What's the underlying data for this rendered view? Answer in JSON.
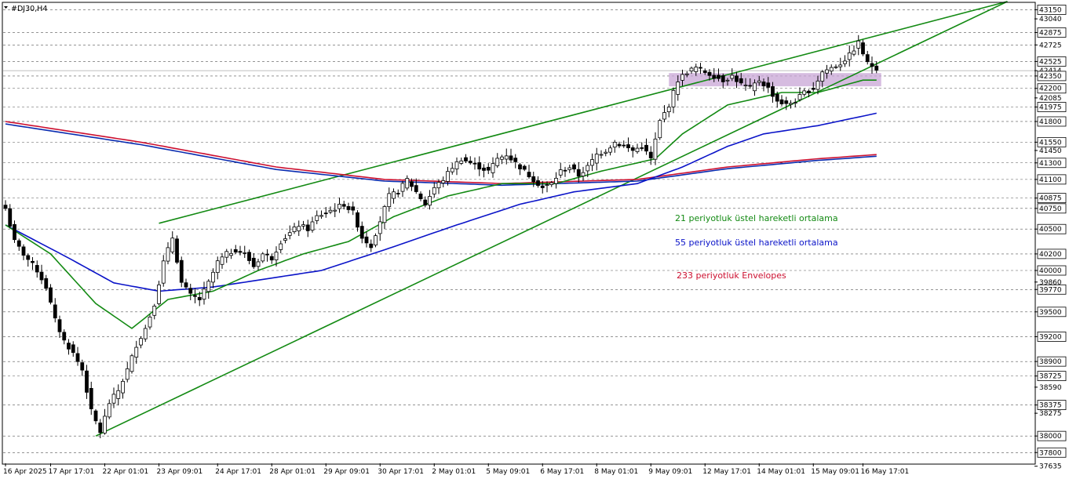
{
  "symbol_title": "#DJ30,H4",
  "colors": {
    "ema21": "#138a13",
    "ema55": "#0a13c8",
    "envelope_upper": "#cc1030",
    "envelope_lower": "#0a2cb0",
    "trendline": "#138a13",
    "zone": "#c8a6d6",
    "bull_body": "#ffffff",
    "bear_body": "#000000",
    "grid": "#555555",
    "current_price_line": "#aaaaaa"
  },
  "annotations": [
    {
      "text": "21 periyotluk üstel hareketli ortalama",
      "color": "#138a13"
    },
    {
      "text": "55 periyotluk üstel hareketli ortalama",
      "color": "#0a13c8"
    },
    {
      "text": "233 periyotluk Envelopes",
      "color": "#cc1030"
    }
  ],
  "chart_data": {
    "type": "candlestick",
    "title": "#DJ30,H4",
    "y_range": [
      37670,
      43230
    ],
    "y_ticks": [
      {
        "value": 43150,
        "label": "43150",
        "boxed": true,
        "gridline": true
      },
      {
        "value": 43040,
        "label": "43040",
        "boxed": false,
        "gridline": false
      },
      {
        "value": 42875,
        "label": "42875",
        "boxed": true,
        "gridline": true
      },
      {
        "value": 42725,
        "label": "42725",
        "boxed": false,
        "gridline": true
      },
      {
        "value": 42525,
        "label": "42525",
        "boxed": true,
        "gridline": true
      },
      {
        "value": 42414,
        "label": "42414",
        "boxed": false,
        "gridline": false
      },
      {
        "value": 42350,
        "label": "42350",
        "boxed": true,
        "gridline": true
      },
      {
        "value": 42200,
        "label": "42200",
        "boxed": true,
        "gridline": true
      },
      {
        "value": 42085,
        "label": "42085",
        "boxed": false,
        "gridline": false
      },
      {
        "value": 41975,
        "label": "41975",
        "boxed": true,
        "gridline": true
      },
      {
        "value": 41800,
        "label": "41800",
        "boxed": true,
        "gridline": true
      },
      {
        "value": 41550,
        "label": "41550",
        "boxed": true,
        "gridline": true
      },
      {
        "value": 41450,
        "label": "41450",
        "boxed": false,
        "gridline": false
      },
      {
        "value": 41300,
        "label": "41300",
        "boxed": true,
        "gridline": true
      },
      {
        "value": 41100,
        "label": "41100",
        "boxed": true,
        "gridline": true
      },
      {
        "value": 40875,
        "label": "40875",
        "boxed": true,
        "gridline": true
      },
      {
        "value": 40750,
        "label": "40750",
        "boxed": true,
        "gridline": true
      },
      {
        "value": 40500,
        "label": "40500",
        "boxed": true,
        "gridline": true
      },
      {
        "value": 40200,
        "label": "40200",
        "boxed": true,
        "gridline": true
      },
      {
        "value": 40000,
        "label": "40000",
        "boxed": true,
        "gridline": true
      },
      {
        "value": 39860,
        "label": "39860",
        "boxed": false,
        "gridline": false
      },
      {
        "value": 39770,
        "label": "39770",
        "boxed": true,
        "gridline": true
      },
      {
        "value": 39500,
        "label": "39500",
        "boxed": true,
        "gridline": true
      },
      {
        "value": 39200,
        "label": "39200",
        "boxed": true,
        "gridline": true
      },
      {
        "value": 38900,
        "label": "38900",
        "boxed": true,
        "gridline": true
      },
      {
        "value": 38725,
        "label": "38725",
        "boxed": true,
        "gridline": true
      },
      {
        "value": 38590,
        "label": "38590",
        "boxed": false,
        "gridline": false
      },
      {
        "value": 38375,
        "label": "38375",
        "boxed": true,
        "gridline": true
      },
      {
        "value": 38275,
        "label": "38275",
        "boxed": false,
        "gridline": false
      },
      {
        "value": 38000,
        "label": "38000",
        "boxed": true,
        "gridline": true
      },
      {
        "value": 37800,
        "label": "37800",
        "boxed": true,
        "gridline": true
      },
      {
        "value": 37635,
        "label": "37635",
        "boxed": false,
        "gridline": false
      }
    ],
    "current_price": 42414,
    "x_labels": [
      {
        "index": 0,
        "label": "16 Apr 2025"
      },
      {
        "index": 10,
        "label": "17 Apr 17:01"
      },
      {
        "index": 22,
        "label": "22 Apr 01:01"
      },
      {
        "index": 34,
        "label": "23 Apr 09:01"
      },
      {
        "index": 47,
        "label": "24 Apr 17:01"
      },
      {
        "index": 59,
        "label": "28 Apr 01:01"
      },
      {
        "index": 71,
        "label": "29 Apr 09:01"
      },
      {
        "index": 83,
        "label": "30 Apr 17:01"
      },
      {
        "index": 95,
        "label": "2 May 01:01"
      },
      {
        "index": 107,
        "label": "5 May 09:01"
      },
      {
        "index": 119,
        "label": "6 May 17:01"
      },
      {
        "index": 131,
        "label": "8 May 01:01"
      },
      {
        "index": 143,
        "label": "9 May 09:01"
      },
      {
        "index": 155,
        "label": "12 May 17:01"
      },
      {
        "index": 167,
        "label": "14 May 01:01"
      },
      {
        "index": 179,
        "label": "15 May 09:01"
      },
      {
        "index": 190,
        "label": "16 May 17:01"
      }
    ],
    "close_anchors": [
      [
        0,
        40750
      ],
      [
        2,
        40350
      ],
      [
        4,
        40200
      ],
      [
        7,
        40000
      ],
      [
        9,
        39800
      ],
      [
        11,
        39400
      ],
      [
        13,
        39150
      ],
      [
        15,
        39000
      ],
      [
        17,
        38800
      ],
      [
        19,
        38300
      ],
      [
        21,
        38050
      ],
      [
        23,
        38400
      ],
      [
        25,
        38550
      ],
      [
        27,
        38800
      ],
      [
        29,
        39100
      ],
      [
        31,
        39300
      ],
      [
        33,
        39600
      ],
      [
        35,
        40100
      ],
      [
        37,
        40400
      ],
      [
        39,
        39850
      ],
      [
        41,
        39700
      ],
      [
        43,
        39650
      ],
      [
        45,
        39850
      ],
      [
        47,
        40100
      ],
      [
        49,
        40200
      ],
      [
        51,
        40250
      ],
      [
        53,
        40200
      ],
      [
        55,
        40050
      ],
      [
        57,
        40200
      ],
      [
        59,
        40150
      ],
      [
        61,
        40350
      ],
      [
        63,
        40450
      ],
      [
        65,
        40550
      ],
      [
        67,
        40500
      ],
      [
        69,
        40650
      ],
      [
        71,
        40700
      ],
      [
        73,
        40750
      ],
      [
        75,
        40800
      ],
      [
        77,
        40700
      ],
      [
        79,
        40400
      ],
      [
        81,
        40300
      ],
      [
        83,
        40600
      ],
      [
        85,
        40900
      ],
      [
        87,
        40950
      ],
      [
        89,
        41100
      ],
      [
        91,
        40950
      ],
      [
        93,
        40800
      ],
      [
        95,
        41000
      ],
      [
        97,
        41100
      ],
      [
        99,
        41250
      ],
      [
        101,
        41350
      ],
      [
        103,
        41300
      ],
      [
        105,
        41250
      ],
      [
        107,
        41200
      ],
      [
        109,
        41350
      ],
      [
        111,
        41400
      ],
      [
        113,
        41300
      ],
      [
        115,
        41200
      ],
      [
        117,
        41100
      ],
      [
        119,
        41000
      ],
      [
        121,
        41050
      ],
      [
        123,
        41200
      ],
      [
        125,
        41250
      ],
      [
        127,
        41150
      ],
      [
        129,
        41250
      ],
      [
        131,
        41400
      ],
      [
        133,
        41450
      ],
      [
        135,
        41550
      ],
      [
        137,
        41500
      ],
      [
        139,
        41450
      ],
      [
        141,
        41500
      ],
      [
        143,
        41350
      ],
      [
        145,
        41800
      ],
      [
        147,
        42000
      ],
      [
        149,
        42300
      ],
      [
        151,
        42400
      ],
      [
        153,
        42450
      ],
      [
        155,
        42400
      ],
      [
        157,
        42350
      ],
      [
        159,
        42300
      ],
      [
        161,
        42350
      ],
      [
        163,
        42250
      ],
      [
        165,
        42200
      ],
      [
        167,
        42300
      ],
      [
        169,
        42200
      ],
      [
        171,
        42050
      ],
      [
        173,
        42000
      ],
      [
        175,
        42050
      ],
      [
        177,
        42150
      ],
      [
        179,
        42200
      ],
      [
        181,
        42400
      ],
      [
        183,
        42450
      ],
      [
        185,
        42500
      ],
      [
        187,
        42600
      ],
      [
        189,
        42750
      ],
      [
        191,
        42500
      ],
      [
        193,
        42450
      ]
    ],
    "candle_count": 194,
    "ema21_anchors": [
      [
        0,
        40550
      ],
      [
        10,
        40200
      ],
      [
        20,
        39600
      ],
      [
        28,
        39300
      ],
      [
        36,
        39650
      ],
      [
        46,
        39750
      ],
      [
        56,
        40000
      ],
      [
        66,
        40200
      ],
      [
        76,
        40350
      ],
      [
        86,
        40650
      ],
      [
        98,
        40900
      ],
      [
        110,
        41050
      ],
      [
        122,
        41050
      ],
      [
        132,
        41200
      ],
      [
        144,
        41350
      ],
      [
        150,
        41650
      ],
      [
        160,
        42000
      ],
      [
        172,
        42150
      ],
      [
        180,
        42150
      ],
      [
        190,
        42300
      ],
      [
        193,
        42300
      ]
    ],
    "ema55_anchors": [
      [
        0,
        40550
      ],
      [
        14,
        40150
      ],
      [
        24,
        39850
      ],
      [
        34,
        39750
      ],
      [
        46,
        39800
      ],
      [
        58,
        39900
      ],
      [
        70,
        40000
      ],
      [
        84,
        40250
      ],
      [
        100,
        40550
      ],
      [
        114,
        40800
      ],
      [
        126,
        40950
      ],
      [
        140,
        41050
      ],
      [
        150,
        41250
      ],
      [
        160,
        41500
      ],
      [
        168,
        41650
      ],
      [
        180,
        41750
      ],
      [
        193,
        41900
      ]
    ],
    "envelope_upper_anchors": [
      [
        0,
        41800
      ],
      [
        30,
        41550
      ],
      [
        60,
        41250
      ],
      [
        84,
        41100
      ],
      [
        110,
        41050
      ],
      [
        140,
        41100
      ],
      [
        160,
        41250
      ],
      [
        180,
        41350
      ],
      [
        193,
        41400
      ]
    ],
    "envelope_lower_anchors": [
      [
        0,
        41770
      ],
      [
        30,
        41520
      ],
      [
        60,
        41220
      ],
      [
        84,
        41080
      ],
      [
        110,
        41030
      ],
      [
        140,
        41080
      ],
      [
        160,
        41230
      ],
      [
        180,
        41330
      ],
      [
        193,
        41380
      ]
    ],
    "channel_upper_line": {
      "from_index": 34,
      "from_value": 40570,
      "to_index": 222,
      "to_value": 43250
    },
    "channel_lower_line": {
      "from_index": 20,
      "from_value": 38000,
      "to_index": 222,
      "to_value": 43250
    },
    "zone": {
      "from_index": 147,
      "to_index": 193,
      "low": 42225,
      "high": 42385
    }
  }
}
